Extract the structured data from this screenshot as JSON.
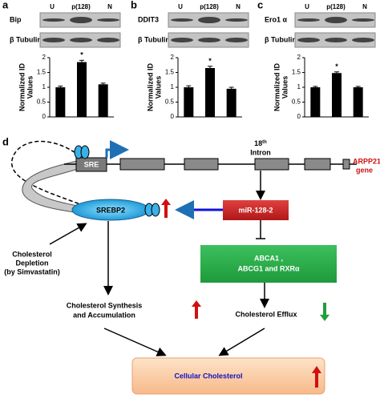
{
  "chart_data": [
    {
      "type": "bar",
      "panel": "a",
      "categories": [
        "U",
        "p(128)",
        "N"
      ],
      "blots": [
        "Bip",
        "β Tubulin"
      ],
      "ylabel": [
        "Normalized ID",
        "Values"
      ],
      "values": [
        1.0,
        1.85,
        1.1
      ],
      "errors": [
        0.04,
        0.06,
        0.04
      ],
      "annotation": "*",
      "color": "#000000",
      "ylim": [
        0,
        2
      ],
      "yticks": [
        0,
        0.5,
        1,
        1.5,
        2
      ]
    },
    {
      "type": "bar",
      "panel": "b",
      "categories": [
        "U",
        "p(128)",
        "N"
      ],
      "blots": [
        "DDIT3",
        "β Tubulin"
      ],
      "ylabel": [
        "Normalized ID",
        "Values"
      ],
      "values": [
        1.0,
        1.65,
        0.95
      ],
      "errors": [
        0.05,
        0.06,
        0.05
      ],
      "annotation": "*",
      "color": "#000000",
      "ylim": [
        0,
        2
      ],
      "yticks": [
        0,
        0.5,
        1,
        1.5,
        2
      ]
    },
    {
      "type": "bar",
      "panel": "c",
      "categories": [
        "U",
        "p(128)",
        "N"
      ],
      "blots": [
        "Ero1 α",
        "β Tubulin"
      ],
      "ylabel": [
        "Normalized ID",
        "Values"
      ],
      "values": [
        1.0,
        1.48,
        1.0
      ],
      "errors": [
        0.03,
        0.04,
        0.03
      ],
      "annotation": "*",
      "color": "#000000",
      "ylim": [
        0,
        2
      ],
      "yticks": [
        0,
        0.5,
        1,
        1.5,
        2
      ]
    }
  ],
  "diagram": {
    "panel": "d",
    "sre": "SRE",
    "intron": {
      "ordinal": "18",
      "suffix": "th",
      "word": "Intron"
    },
    "gene": [
      "ARPP21",
      "gene"
    ],
    "srebp2": "SREBP2",
    "mir": "miR-128-2",
    "targets": [
      "ABCA1 ,",
      "ABCG1 and RXRα"
    ],
    "depletion": [
      "Cholesterol",
      "Depletion",
      "(by Simvastatin)"
    ],
    "synthesis": [
      "Cholesterol Synthesis",
      "and Accumulation"
    ],
    "efflux": "Cholesterol Efflux",
    "cellular": "Cellular Cholesterol"
  }
}
